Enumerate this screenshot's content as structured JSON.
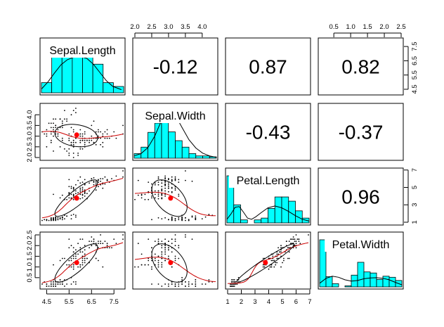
{
  "chart_data": {
    "type": "scatter-matrix",
    "title": "",
    "variables": [
      "Sepal.Length",
      "Sepal.Width",
      "Petal.Length",
      "Petal.Width"
    ],
    "ranges": {
      "Sepal.Length": [
        4.3,
        7.9
      ],
      "Sepal.Width": [
        2.0,
        4.4
      ],
      "Petal.Length": [
        1.0,
        6.9
      ],
      "Petal.Width": [
        0.1,
        2.5
      ]
    },
    "correlations": [
      {
        "row": 0,
        "col": 1,
        "label": "-0.12",
        "value": -0.12
      },
      {
        "row": 0,
        "col": 2,
        "label": "0.87",
        "value": 0.87
      },
      {
        "row": 0,
        "col": 3,
        "label": "0.82",
        "value": 0.82
      },
      {
        "row": 1,
        "col": 2,
        "label": "-0.43",
        "value": -0.43
      },
      {
        "row": 1,
        "col": 3,
        "label": "-0.37",
        "value": -0.37
      },
      {
        "row": 2,
        "col": 3,
        "label": "0.96",
        "value": 0.96
      }
    ],
    "means": {
      "Sepal.Length": 5.84,
      "Sepal.Width": 3.06,
      "Petal.Length": 3.76,
      "Petal.Width": 1.2
    },
    "histograms": {
      "Sepal.Length": {
        "range": [
          4.2,
          8.0
        ],
        "density": [
          0.16,
          0.71,
          0.71,
          0.74,
          0.74,
          0.45,
          0.16,
          0.1
        ]
      },
      "Sepal.Width": {
        "range": [
          2.0,
          4.4
        ],
        "density": [
          0.1,
          0.24,
          0.56,
          0.76,
          1.0,
          0.57,
          0.38,
          0.24,
          0.1,
          0.05,
          0.05,
          0.03
        ]
      },
      "Petal.Length": {
        "range": [
          1.0,
          7.0
        ],
        "density": [
          0.78,
          0.3,
          0.05,
          0.0,
          0.05,
          0.08,
          0.24,
          0.43,
          0.43,
          0.36,
          0.2,
          0.08
        ]
      },
      "Petal.Width": {
        "range": [
          0.0,
          2.6
        ],
        "density": [
          2.2,
          0.48,
          0.15,
          0.0,
          0.05,
          0.55,
          1.15,
          0.7,
          0.65,
          0.35,
          0.5,
          0.45,
          0.3
        ]
      }
    },
    "density_curves": {
      "Sepal.Length": [
        [
          4.2,
          0.06
        ],
        [
          4.5,
          0.17
        ],
        [
          4.8,
          0.31
        ],
        [
          5.1,
          0.44
        ],
        [
          5.4,
          0.52
        ],
        [
          5.7,
          0.56
        ],
        [
          6.0,
          0.57
        ],
        [
          6.3,
          0.54
        ],
        [
          6.6,
          0.45
        ],
        [
          6.9,
          0.32
        ],
        [
          7.2,
          0.19
        ],
        [
          7.5,
          0.1
        ],
        [
          7.9,
          0.05
        ]
      ],
      "Sepal.Width": [
        [
          2.0,
          0.05
        ],
        [
          2.2,
          0.1
        ],
        [
          2.4,
          0.23
        ],
        [
          2.6,
          0.48
        ],
        [
          2.8,
          0.82
        ],
        [
          3.0,
          1.02
        ],
        [
          3.2,
          0.93
        ],
        [
          3.4,
          0.66
        ],
        [
          3.6,
          0.4
        ],
        [
          3.8,
          0.22
        ],
        [
          4.0,
          0.11
        ],
        [
          4.2,
          0.05
        ],
        [
          4.4,
          0.02
        ]
      ],
      "Petal.Length": [
        [
          1.0,
          0.06
        ],
        [
          1.3,
          0.15
        ],
        [
          1.6,
          0.26
        ],
        [
          1.9,
          0.27
        ],
        [
          2.2,
          0.18
        ],
        [
          2.5,
          0.08
        ],
        [
          2.8,
          0.06
        ],
        [
          3.1,
          0.1
        ],
        [
          3.5,
          0.17
        ],
        [
          4.0,
          0.25
        ],
        [
          4.5,
          0.28
        ],
        [
          5.0,
          0.25
        ],
        [
          5.5,
          0.19
        ],
        [
          6.0,
          0.12
        ],
        [
          6.5,
          0.06
        ],
        [
          7.0,
          0.03
        ]
      ],
      "Petal.Width": [
        [
          0.0,
          0.17
        ],
        [
          0.2,
          0.4
        ],
        [
          0.4,
          0.5
        ],
        [
          0.6,
          0.45
        ],
        [
          0.8,
          0.33
        ],
        [
          1.0,
          0.27
        ],
        [
          1.2,
          0.3
        ],
        [
          1.4,
          0.38
        ],
        [
          1.6,
          0.42
        ],
        [
          1.8,
          0.43
        ],
        [
          2.0,
          0.4
        ],
        [
          2.2,
          0.33
        ],
        [
          2.4,
          0.21
        ],
        [
          2.6,
          0.1
        ]
      ]
    },
    "axes": {
      "top": [
        {
          "col": 1,
          "ticks": [
            2.0,
            2.5,
            3.0,
            3.5,
            4.0
          ],
          "labels": [
            "2.0",
            "2.5",
            "3.0",
            "3.5",
            "4.0"
          ]
        },
        {
          "col": 3,
          "ticks": [
            0.5,
            1.0,
            1.5,
            2.0,
            2.5
          ],
          "labels": [
            "0.5",
            "1.0",
            "1.5",
            "2.0",
            "2.5"
          ]
        }
      ],
      "bottom": [
        {
          "col": 0,
          "ticks": [
            4.5,
            5.5,
            6.5,
            7.5
          ],
          "labels": [
            "4.5",
            "5.5",
            "6.5",
            "7.5"
          ]
        },
        {
          "col": 2,
          "ticks": [
            1,
            2,
            3,
            4,
            5,
            6,
            7
          ],
          "labels": [
            "1",
            "2",
            "3",
            "4",
            "5",
            "6",
            "7"
          ]
        }
      ],
      "left": [
        {
          "row": 1,
          "ticks": [
            2.0,
            2.5,
            3.0,
            3.5,
            4.0
          ],
          "labels": [
            "2.0",
            "2.5",
            "3.0",
            "3.5",
            "4.0"
          ]
        },
        {
          "row": 3,
          "ticks": [
            0.5,
            1.0,
            1.5,
            2.0,
            2.5
          ],
          "labels": [
            "0.5",
            "1.0",
            "1.5",
            "2.0",
            "2.5"
          ]
        }
      ],
      "right": [
        {
          "row": 0,
          "ticks": [
            4.5,
            5.5,
            6.5,
            7.5
          ],
          "labels": [
            "4.5",
            "5.5",
            "6.5",
            "7.5"
          ]
        },
        {
          "row": 2,
          "ticks": [
            1,
            3,
            5,
            7
          ],
          "labels": [
            "1",
            "3",
            "5",
            "7"
          ]
        }
      ]
    },
    "colors": {
      "histogram_fill": "#00FFFF",
      "smoother": "#CC0000",
      "mean_point": "#FF0000",
      "points": "#000000",
      "ellipse": "#000000",
      "frame": "#000000"
    }
  }
}
